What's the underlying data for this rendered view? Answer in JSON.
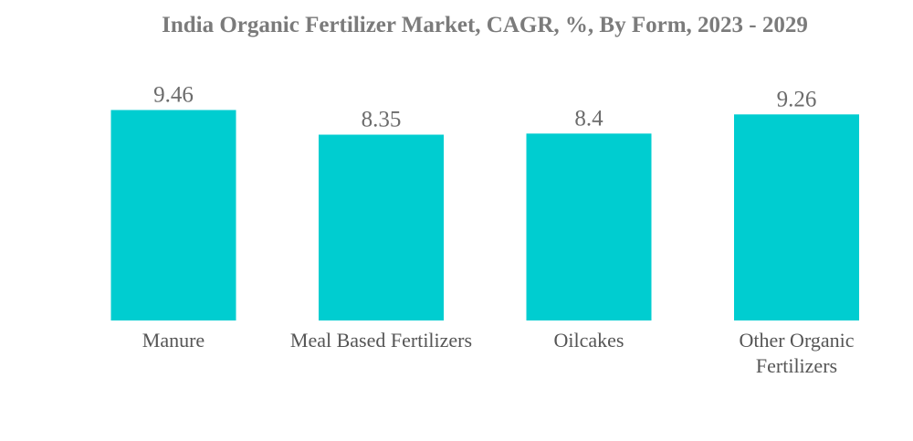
{
  "chart_data": {
    "type": "bar",
    "title": "India Organic Fertilizer Market, CAGR, %, By Form, 2023 - 2029",
    "categories": [
      "Manure",
      "Meal Based Fertilizers",
      "Oilcakes",
      "Other Organic Fertilizers"
    ],
    "category_lines": [
      [
        "Manure"
      ],
      [
        "Meal Based Fertilizers"
      ],
      [
        "Oilcakes"
      ],
      [
        "Other Organic",
        "Fertilizers"
      ]
    ],
    "values": [
      9.46,
      8.35,
      8.4,
      9.26
    ],
    "value_labels": [
      "9.46",
      "8.35",
      "8.4",
      "9.26"
    ],
    "xlabel": "",
    "ylabel": "",
    "ylim": [
      0,
      10.3
    ],
    "grid": false,
    "legend": "none",
    "bar_color": "#00cdd0"
  }
}
